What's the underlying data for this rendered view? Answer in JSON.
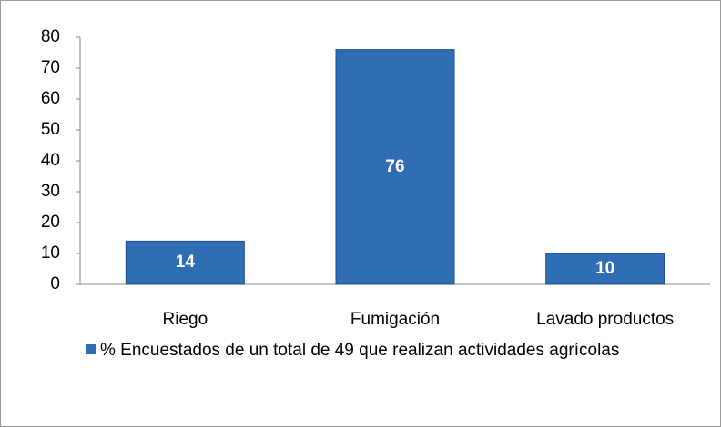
{
  "chart_data": {
    "type": "bar",
    "categories": [
      "Riego",
      "Fumigación",
      "Lavado productos"
    ],
    "series": [
      {
        "name": "% Encuestados de un total de 49 que realizan actividades agrícolas",
        "color": "#2f6db5",
        "values": [
          14,
          76,
          10
        ]
      }
    ],
    "ylim": [
      0,
      80
    ],
    "yticks": [
      0,
      10,
      20,
      30,
      40,
      50,
      60,
      70,
      80
    ],
    "grid": false,
    "legend": "bottom"
  }
}
